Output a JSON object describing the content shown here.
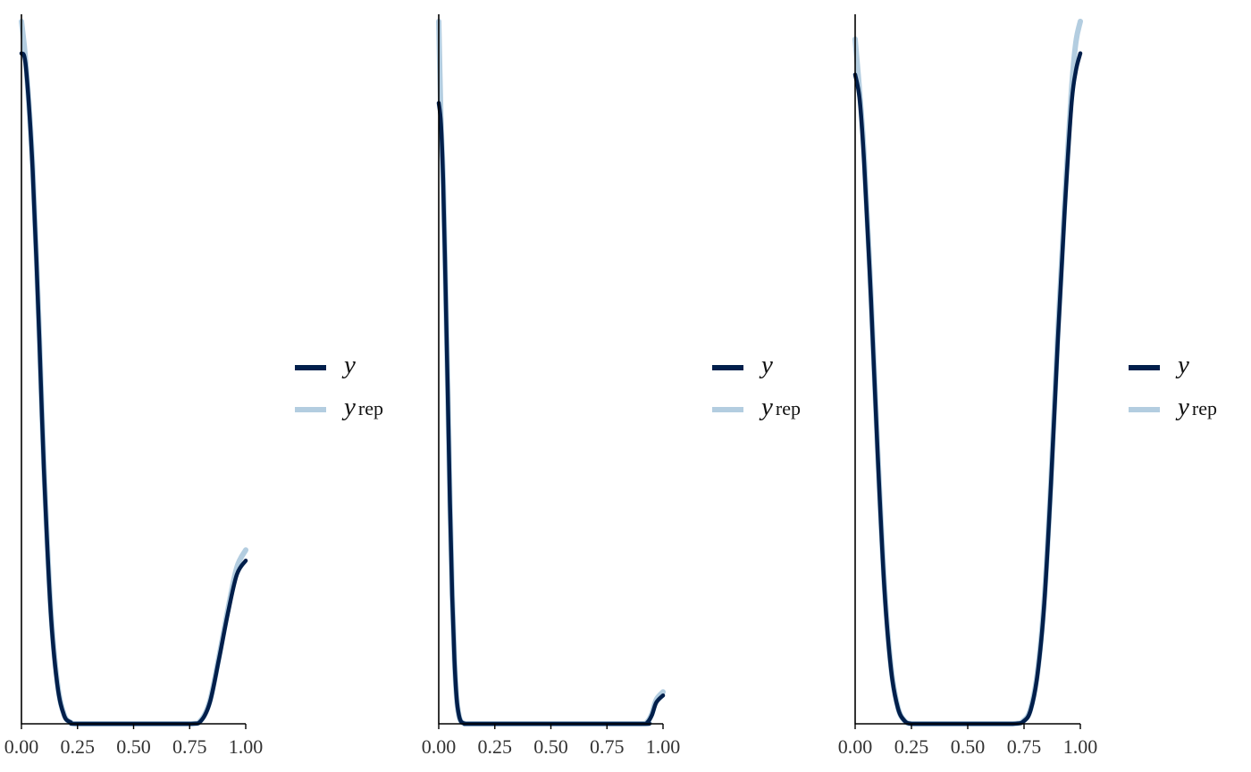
{
  "chart_data": [
    {
      "type": "line",
      "xlim": [
        0,
        1
      ],
      "x_ticks": [
        "0.00",
        "0.25",
        "0.50",
        "0.75",
        "1.00"
      ],
      "grid": false,
      "legend_position": "right",
      "legend": [
        {
          "label": "y",
          "series": "y"
        },
        {
          "label": "y",
          "subscript": "rep",
          "series": "yrep"
        }
      ],
      "ylim": [
        0,
        1
      ],
      "series": [
        {
          "name": "y",
          "x": [
            0,
            0.02,
            0.05,
            0.08,
            0.1,
            0.13,
            0.16,
            0.19,
            0.22,
            0.25,
            0.5,
            0.75,
            0.8,
            0.84,
            0.88,
            0.92,
            0.96,
            1.0
          ],
          "y": [
            0.945,
            0.925,
            0.78,
            0.54,
            0.36,
            0.16,
            0.055,
            0.012,
            0.002,
            0.0,
            0.0,
            0.0,
            0.004,
            0.03,
            0.09,
            0.155,
            0.21,
            0.23
          ]
        },
        {
          "name": "yrep",
          "x": [
            0,
            0.02,
            0.05,
            0.08,
            0.1,
            0.13,
            0.16,
            0.19,
            0.22,
            0.25,
            0.5,
            0.75,
            0.8,
            0.84,
            0.88,
            0.92,
            0.96,
            1.0
          ],
          "y": [
            0.99,
            0.93,
            0.785,
            0.545,
            0.365,
            0.165,
            0.058,
            0.013,
            0.002,
            0.0,
            0.0,
            0.0,
            0.005,
            0.032,
            0.093,
            0.16,
            0.22,
            0.245
          ]
        }
      ]
    },
    {
      "type": "line",
      "xlim": [
        0,
        1
      ],
      "x_ticks": [
        "0.00",
        "0.25",
        "0.50",
        "0.75",
        "1.00"
      ],
      "grid": false,
      "legend_position": "right",
      "legend": [
        {
          "label": "y",
          "series": "y"
        },
        {
          "label": "y",
          "subscript": "rep",
          "series": "yrep"
        }
      ],
      "ylim": [
        0,
        1
      ],
      "series": [
        {
          "name": "y",
          "x": [
            0,
            0.01,
            0.02,
            0.03,
            0.04,
            0.05,
            0.06,
            0.07,
            0.08,
            0.09,
            0.1,
            0.12,
            0.15,
            0.5,
            0.9,
            0.93,
            0.95,
            0.97,
            1.0
          ],
          "y": [
            0.875,
            0.845,
            0.76,
            0.62,
            0.47,
            0.31,
            0.18,
            0.09,
            0.035,
            0.012,
            0.003,
            0.0,
            0.0,
            0.0,
            0.0,
            0.002,
            0.012,
            0.03,
            0.04
          ]
        },
        {
          "name": "yrep",
          "x": [
            0,
            0.01,
            0.02,
            0.03,
            0.04,
            0.05,
            0.06,
            0.07,
            0.08,
            0.09,
            0.1,
            0.12,
            0.15,
            0.5,
            0.9,
            0.93,
            0.95,
            0.97,
            1.0
          ],
          "y": [
            0.99,
            0.85,
            0.765,
            0.625,
            0.475,
            0.315,
            0.183,
            0.092,
            0.036,
            0.012,
            0.003,
            0.0,
            0.0,
            0.0,
            0.0,
            0.003,
            0.014,
            0.034,
            0.045
          ]
        }
      ]
    },
    {
      "type": "line",
      "xlim": [
        0,
        1
      ],
      "x_ticks": [
        "0.00",
        "0.25",
        "0.50",
        "0.75",
        "1.00"
      ],
      "grid": false,
      "legend_position": "right",
      "legend": [
        {
          "label": "y",
          "series": "y"
        },
        {
          "label": "y",
          "subscript": "rep",
          "series": "yrep"
        }
      ],
      "ylim": [
        0,
        1
      ],
      "series": [
        {
          "name": "y",
          "x": [
            0,
            0.02,
            0.04,
            0.07,
            0.1,
            0.13,
            0.16,
            0.19,
            0.22,
            0.25,
            0.3,
            0.5,
            0.7,
            0.75,
            0.78,
            0.81,
            0.84,
            0.87,
            0.9,
            0.93,
            0.96,
            0.98,
            1.0
          ],
          "y": [
            0.915,
            0.88,
            0.79,
            0.6,
            0.38,
            0.19,
            0.075,
            0.022,
            0.004,
            0.0,
            0.0,
            0.0,
            0.0,
            0.004,
            0.02,
            0.07,
            0.17,
            0.34,
            0.54,
            0.72,
            0.87,
            0.92,
            0.945
          ]
        },
        {
          "name": "yrep",
          "x": [
            0,
            0.02,
            0.04,
            0.07,
            0.1,
            0.13,
            0.16,
            0.19,
            0.22,
            0.25,
            0.3,
            0.5,
            0.7,
            0.75,
            0.78,
            0.81,
            0.84,
            0.87,
            0.9,
            0.93,
            0.96,
            0.98,
            1.0
          ],
          "y": [
            0.965,
            0.89,
            0.8,
            0.605,
            0.385,
            0.195,
            0.078,
            0.023,
            0.004,
            0.0,
            0.0,
            0.0,
            0.0,
            0.005,
            0.022,
            0.073,
            0.175,
            0.345,
            0.55,
            0.73,
            0.89,
            0.96,
            0.99
          ]
        }
      ]
    }
  ],
  "colors": {
    "y": "#011f4b",
    "yrep": "#b3cde0",
    "axis": "#000000"
  }
}
